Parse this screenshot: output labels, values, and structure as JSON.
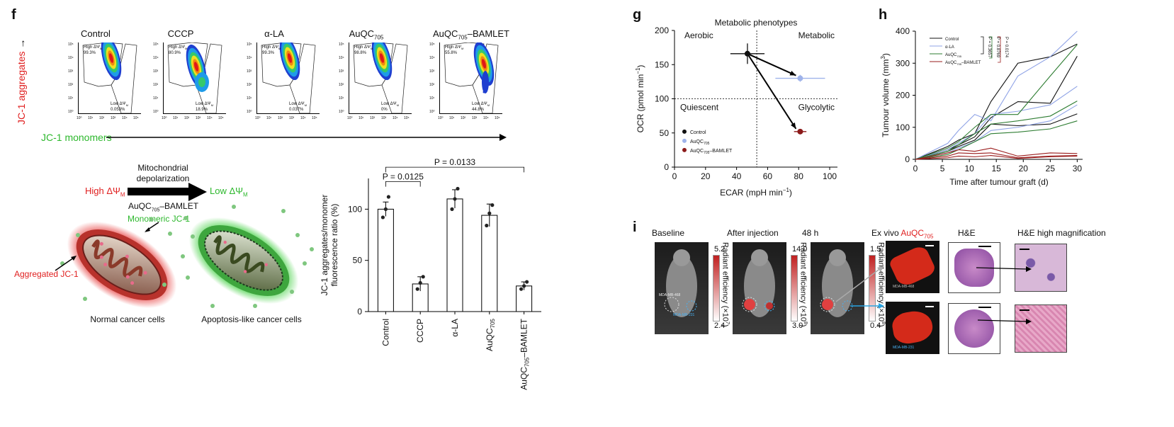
{
  "panel_f": {
    "label": "f",
    "flow_titles": [
      "Control",
      "CCCP",
      "α-LA",
      "AuQC",
      "AuQC"
    ],
    "flow_title_sub": "705",
    "flow_title_suffix": "–BAMLET",
    "y_axis_label": "JC-1 aggregates",
    "x_axis_label": "JC-1 monomers",
    "high_label": "High ΔΨ",
    "low_label": "Low ΔΨ",
    "sub_M": "M",
    "high_pcts": [
      "99.3%",
      "80.9%",
      "99.3%",
      "98.8%",
      "55.8%"
    ],
    "low_pcts": [
      "0.053%",
      "18.9%",
      "0.037%",
      "0%",
      "44.8%"
    ],
    "axis_ticks_y": [
      "10⁵",
      "10⁴",
      "10³",
      "10²",
      "10¹",
      "10⁰"
    ],
    "axis_ticks_x": [
      "10⁰",
      "10¹",
      "10²",
      "10³",
      "10⁴",
      "10⁵"
    ],
    "schematic": {
      "depol_line1": "Mitochondrial",
      "depol_line2": "depolarization",
      "high": "High ΔΨ",
      "low": "Low ΔΨ",
      "sub_M": "M",
      "agent": "AuQC",
      "agent_sub": "705",
      "agent_suffix": "–BAMLET",
      "monomeric": "Monomeric JC-1",
      "aggregated": "Aggregated JC-1",
      "normal": "Normal cancer cells",
      "apoptosis": "Apoptosis-like cancer cells"
    }
  },
  "panel_g": {
    "label": "g",
    "title": "Metabolic phenotypes",
    "quadrants": [
      "Aerobic",
      "Metabolic",
      "Quiescent",
      "Glycolytic"
    ],
    "legend": [
      "Control",
      "AuQC",
      "AuQC"
    ],
    "legend_sub": "705",
    "legend_suffix": "–BAMLET"
  },
  "panel_h": {
    "label": "h",
    "legend": [
      "Control",
      "α-LA",
      "AuQC",
      "AuQC"
    ],
    "legend_sub": "705",
    "legend_suffix": "–BAMLET",
    "pvals": [
      "P = 0.3657",
      "P = 0.8769",
      "P = 0.0174"
    ]
  },
  "panel_i": {
    "label": "i",
    "headers": [
      "Baseline",
      "After injection",
      "48 h",
      "Ex vivo",
      "H&E",
      "H&E high magnification"
    ],
    "exvivo_agent": "AuQC",
    "exvivo_sub": "705",
    "colorbar_max": [
      "5.2",
      "14.0",
      "1.5"
    ],
    "colorbar_min": [
      "2.4",
      "3.0",
      "0.4"
    ],
    "colorbar_label": "Radiant efficiency (×10",
    "colorbar_exp": [
      "7",
      "8",
      "8"
    ],
    "cell_468": "MDA-MB-468",
    "cell_231": "MDA-MB-231"
  },
  "chart_data": [
    {
      "type": "bar",
      "panel": "f",
      "categories": [
        "Control",
        "CCCP",
        "α-LA",
        "AuQC705",
        "AuQC705–BAMLET"
      ],
      "values": [
        100,
        27,
        110,
        94,
        25
      ],
      "errors": [
        7,
        7,
        9,
        11,
        4
      ],
      "points": [
        [
          92,
          100,
          112
        ],
        [
          22,
          28,
          34
        ],
        [
          100,
          110,
          120
        ],
        [
          84,
          96,
          104
        ],
        [
          22,
          25,
          29
        ]
      ],
      "ylabel_line1": "JC-1 aggregates/monomer",
      "ylabel_line2": "fluorescence ratio (%)",
      "yticks": [
        0,
        50,
        100
      ],
      "ylim": [
        0,
        130
      ],
      "annotations": [
        "P = 0.0125",
        "P = 0.0133"
      ]
    },
    {
      "type": "scatter",
      "panel": "g",
      "xlabel": "ECAR (mpH min",
      "xlabel_exp": "−1",
      "ylabel": "OCR (pmol min",
      "ylabel_exp": "−1",
      "xlim": [
        0,
        105
      ],
      "ylim": [
        0,
        200
      ],
      "xticks": [
        0,
        20,
        40,
        60,
        80,
        100
      ],
      "yticks": [
        0,
        50,
        100,
        150,
        200
      ],
      "series": [
        {
          "name": "Control",
          "x": 47,
          "y": 166,
          "xerr": 11,
          "yerr": 15,
          "color": "#111111"
        },
        {
          "name": "AuQC705",
          "x": 81,
          "y": 130,
          "xerr": 16,
          "yerr": 5,
          "color": "#9fb3ea"
        },
        {
          "name": "AuQC705–BAMLET",
          "x": 81,
          "y": 52,
          "xerr": 4,
          "yerr": 3,
          "color": "#8b1a1a"
        }
      ],
      "divider_x": 53,
      "divider_y": 100
    },
    {
      "type": "line",
      "panel": "h",
      "xlabel": "Time after tumour graft (d)",
      "ylabel": "Tumour volume (mm",
      "ylabel_exp": "3",
      "x": [
        0,
        6,
        8,
        11,
        14,
        19,
        25,
        30
      ],
      "xticks": [
        0,
        5,
        10,
        15,
        20,
        25,
        30
      ],
      "yticks": [
        0,
        100,
        200,
        300,
        400
      ],
      "xlim": [
        0,
        31
      ],
      "ylim": [
        0,
        400
      ],
      "series": [
        {
          "name": "Control",
          "color": "#111111",
          "values": [
            0,
            40,
            60,
            80,
            180,
            300,
            320,
            360
          ]
        },
        {
          "name": "Control",
          "color": "#111111",
          "values": [
            0,
            30,
            45,
            70,
            130,
            180,
            175,
            322
          ]
        },
        {
          "name": "Control",
          "color": "#111111",
          "values": [
            0,
            25,
            40,
            60,
            110,
            105,
            110,
            142
          ]
        },
        {
          "name": "α-LA",
          "color": "#8fa3e6",
          "values": [
            0,
            50,
            90,
            140,
            120,
            260,
            320,
            400
          ]
        },
        {
          "name": "α-LA",
          "color": "#8fa3e6",
          "values": [
            0,
            30,
            50,
            80,
            140,
            150,
            170,
            228
          ]
        },
        {
          "name": "α-LA",
          "color": "#8fa3e6",
          "values": [
            0,
            20,
            35,
            55,
            90,
            100,
            120,
            170
          ]
        },
        {
          "name": "AuQC705",
          "color": "#2e7d32",
          "values": [
            0,
            35,
            55,
            100,
            140,
            140,
            260,
            358
          ]
        },
        {
          "name": "AuQC705",
          "color": "#2e7d32",
          "values": [
            0,
            25,
            45,
            80,
            110,
            120,
            135,
            182
          ]
        },
        {
          "name": "AuQC705",
          "color": "#2e7d32",
          "values": [
            0,
            15,
            30,
            55,
            80,
            85,
            95,
            120
          ]
        },
        {
          "name": "AuQC705–BAMLET",
          "color": "#9a1c1c",
          "values": [
            0,
            20,
            30,
            25,
            35,
            10,
            20,
            18
          ]
        },
        {
          "name": "AuQC705–BAMLET",
          "color": "#9a1c1c",
          "values": [
            0,
            10,
            20,
            18,
            20,
            5,
            10,
            12
          ]
        },
        {
          "name": "AuQC705–BAMLET",
          "color": "#9a1c1c",
          "values": [
            0,
            5,
            10,
            8,
            12,
            3,
            8,
            10
          ]
        }
      ]
    }
  ]
}
